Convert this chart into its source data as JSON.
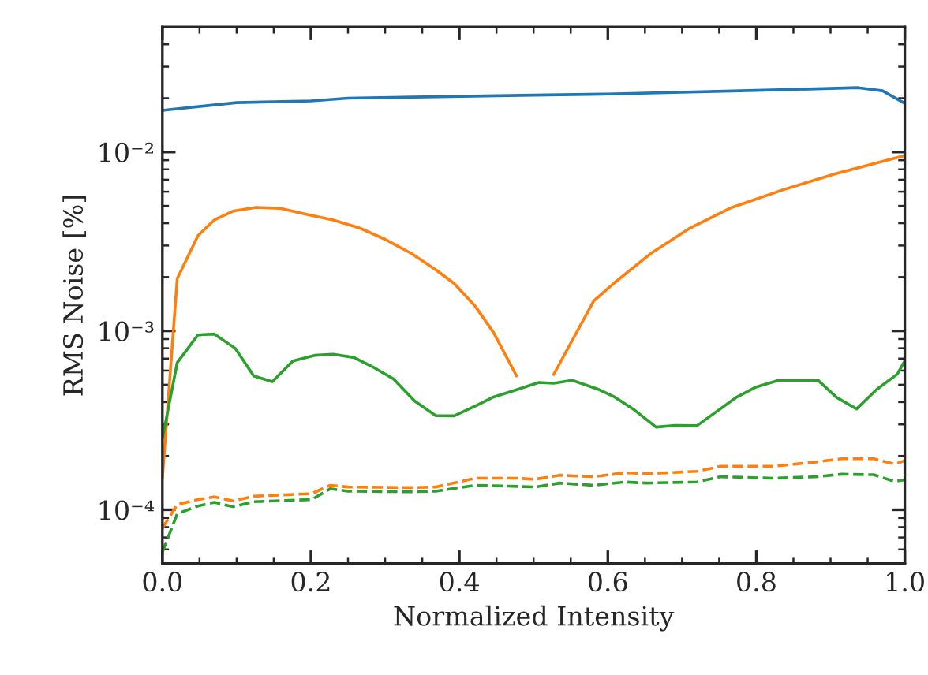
{
  "chart_data": {
    "type": "line",
    "xlabel": "Normalized Intensity",
    "ylabel": "RMS Noise [%]",
    "log": "y",
    "grid": false,
    "marker": "none",
    "xlim": [
      0,
      1
    ],
    "xticks": [
      {
        "value": 0,
        "label": "0.0"
      },
      {
        "value": 0.2,
        "label": "0.2"
      },
      {
        "value": 0.4,
        "label": "0.4"
      },
      {
        "value": 0.6,
        "label": "0.6"
      },
      {
        "value": 0.8,
        "label": "0.8"
      },
      {
        "value": 1,
        "label": "1.0"
      }
    ],
    "ylim": [
      5e-05,
      0.05
    ],
    "yticks": [
      {
        "value": 0.0001,
        "label": "10⁻⁴"
      },
      {
        "value": 0.001,
        "label": "10⁻³"
      },
      {
        "value": 0.01,
        "label": "10⁻²"
      }
    ],
    "series": [
      {
        "color": "#1f77b4",
        "line_style": "solid",
        "x": [
          0,
          0.1,
          0.2,
          0.25,
          0.5,
          0.6,
          0.8,
          0.937,
          0.97,
          1.0
        ],
        "values": [
          0.0171,
          0.0189,
          0.0193,
          0.02,
          0.0208,
          0.0211,
          0.0221,
          0.0229,
          0.022,
          0.0187
        ]
      },
      {
        "color": "#ff7f0e",
        "line_style": "solid",
        "x": [
          0,
          0.02,
          0.048,
          0.07,
          0.095,
          0.126,
          0.158,
          0.19,
          0.23,
          0.265,
          0.3,
          0.336,
          0.368,
          0.393,
          0.421,
          0.446,
          0.477,
          0.5,
          0.527,
          0.581,
          0.609,
          0.659,
          0.709,
          0.766,
          0.837,
          0.908,
          1.0
        ],
        "values": [
          0.00015,
          0.00196,
          0.00341,
          0.00417,
          0.00467,
          0.0049,
          0.00485,
          0.00452,
          0.00417,
          0.00377,
          0.00325,
          0.0027,
          0.0022,
          0.00184,
          0.00138,
          0.00098,
          0.00056,
          null,
          0.00057,
          0.00147,
          0.00186,
          0.00273,
          0.00372,
          0.00488,
          0.00617,
          0.00759,
          0.00955
        ]
      },
      {
        "color": "#2ca02c",
        "line_style": "solid",
        "x": [
          0,
          0.02,
          0.048,
          0.07,
          0.098,
          0.123,
          0.148,
          0.176,
          0.205,
          0.23,
          0.258,
          0.286,
          0.311,
          0.34,
          0.368,
          0.393,
          0.421,
          0.446,
          0.478,
          0.507,
          0.527,
          0.552,
          0.588,
          0.609,
          0.634,
          0.665,
          0.691,
          0.72,
          0.773,
          0.8,
          0.83,
          0.883,
          0.908,
          0.935,
          0.962,
          0.99,
          1.0
        ],
        "values": [
          0.00025,
          0.000665,
          0.00095,
          0.00096,
          0.0008,
          0.00056,
          0.00052,
          0.00068,
          0.00073,
          0.00074,
          0.00071,
          0.00062,
          0.00054,
          0.000405,
          0.000336,
          0.000335,
          0.000379,
          0.000427,
          0.00047,
          0.000515,
          0.00051,
          0.00053,
          0.00047,
          0.000427,
          0.000366,
          0.00029,
          0.000296,
          0.000295,
          0.000425,
          0.000486,
          0.00053,
          0.00053,
          0.000425,
          0.000366,
          0.00047,
          0.000574,
          0.00068
        ]
      },
      {
        "color": "#ff7f0e",
        "line_style": "dashed",
        "x": [
          0,
          0.02,
          0.048,
          0.07,
          0.095,
          0.123,
          0.201,
          0.226,
          0.25,
          0.336,
          0.368,
          0.421,
          0.478,
          0.502,
          0.535,
          0.581,
          0.623,
          0.652,
          0.72,
          0.752,
          0.823,
          0.88,
          0.915,
          0.958,
          0.986,
          1.0
        ],
        "values": [
          7.9e-05,
          0.000107,
          0.000114,
          0.000118,
          0.000112,
          0.000119,
          0.000123,
          0.000137,
          0.000134,
          0.000133,
          0.000134,
          0.00015,
          0.00015,
          0.000148,
          0.000156,
          0.000153,
          0.000161,
          0.000159,
          0.000164,
          0.000175,
          0.000175,
          0.000185,
          0.000193,
          0.000193,
          0.00018,
          0.000188
        ]
      },
      {
        "color": "#2ca02c",
        "line_style": "dashed",
        "x": [
          0,
          0.02,
          0.048,
          0.07,
          0.095,
          0.123,
          0.201,
          0.226,
          0.25,
          0.336,
          0.368,
          0.421,
          0.478,
          0.502,
          0.535,
          0.581,
          0.623,
          0.652,
          0.72,
          0.752,
          0.823,
          0.88,
          0.915,
          0.958,
          0.986,
          1.0
        ],
        "values": [
          5.8e-05,
          9.5e-05,
          0.000105,
          0.00011,
          0.000104,
          0.000111,
          0.000114,
          0.000131,
          0.000127,
          0.000126,
          0.000127,
          0.000137,
          0.000135,
          0.000134,
          0.000141,
          0.000137,
          0.000143,
          0.000141,
          0.000143,
          0.000153,
          0.00015,
          0.000153,
          0.000158,
          0.000157,
          0.000144,
          0.000147
        ]
      }
    ]
  }
}
